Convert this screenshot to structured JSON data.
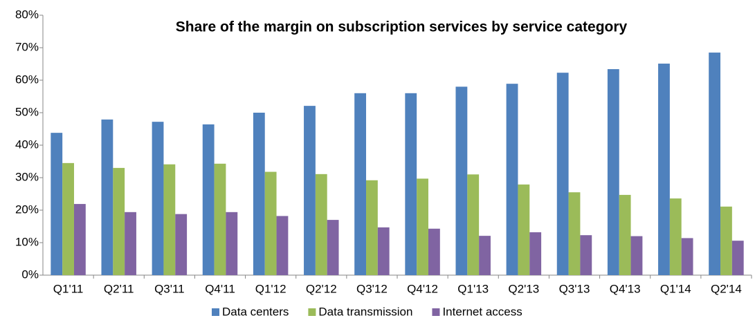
{
  "chart_data": {
    "type": "bar",
    "title": "Share of the margin on subscription services by service category",
    "categories": [
      "Q1'11",
      "Q2'11",
      "Q3'11",
      "Q4'11",
      "Q1'12",
      "Q2'12",
      "Q3'12",
      "Q4'12",
      "Q1'13",
      "Q2'13",
      "Q3'13",
      "Q4'13",
      "Q1'14",
      "Q2'14"
    ],
    "series": [
      {
        "name": "Data centers",
        "color": "#4f81bd",
        "values": [
          43.8,
          47.9,
          47.2,
          46.4,
          50,
          52.1,
          56,
          56,
          58,
          58.9,
          62.3,
          63.4,
          65.1,
          68.5
        ]
      },
      {
        "name": "Data transmission",
        "color": "#9bbb59",
        "values": [
          34.5,
          33,
          34.1,
          34.3,
          31.8,
          31.1,
          29.2,
          29.7,
          31,
          27.9,
          25.5,
          24.7,
          23.6,
          21.1
        ]
      },
      {
        "name": "Internet access",
        "color": "#8064a2",
        "values": [
          21.9,
          19.4,
          18.8,
          19.4,
          18.2,
          17,
          14.7,
          14.3,
          12.1,
          13.2,
          12.3,
          12,
          11.4,
          10.6
        ]
      }
    ],
    "ylim": [
      0,
      80
    ],
    "yticks": [
      {
        "value": 0,
        "label": "0%"
      },
      {
        "value": 10,
        "label": "10%"
      },
      {
        "value": 20,
        "label": "20%"
      },
      {
        "value": 30,
        "label": "30%"
      },
      {
        "value": 40,
        "label": "40%"
      },
      {
        "value": 50,
        "label": "50%"
      },
      {
        "value": 60,
        "label": "60%"
      },
      {
        "value": 70,
        "label": "70%"
      },
      {
        "value": 80,
        "label": "80%"
      }
    ],
    "grid": false,
    "legend": "bottom"
  }
}
